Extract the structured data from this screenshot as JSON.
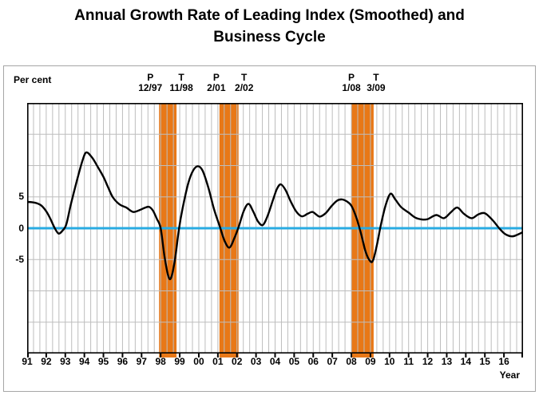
{
  "title_line1": "Annual Growth Rate of Leading Index (Smoothed) and",
  "title_line2": "Business Cycle",
  "percent_label": "Per cent",
  "year_label": "Year",
  "colors": {
    "line": "#000000",
    "zero_line": "#29ABE2",
    "recession_band": "#E87817",
    "gridline": "#BDBDBD",
    "plot_border": "#000000",
    "frame_border": "#A6A6A6"
  },
  "chart_data": {
    "type": "line",
    "title": "Annual Growth Rate of Leading Index (Smoothed) and Business Cycle",
    "ylabel": "Per cent",
    "xlabel": "Year",
    "xlim": [
      1991,
      2017
    ],
    "ylim": [
      -20,
      20
    ],
    "grid": true,
    "y_gridline_step": 5,
    "x_gridlines_per_year": 3,
    "y_labeled_ticks": [
      {
        "label": "5",
        "value": 5
      },
      {
        "label": "0",
        "value": 0
      },
      {
        "label": "-5",
        "value": -5
      }
    ],
    "x_tick_years": [
      "91",
      "92",
      "93",
      "94",
      "95",
      "96",
      "97",
      "98",
      "99",
      "00",
      "01",
      "02",
      "03",
      "04",
      "05",
      "06",
      "07",
      "08",
      "09",
      "10",
      "11",
      "12",
      "13",
      "14",
      "15",
      "16"
    ],
    "zero_line_value": 0,
    "recession_bands": [
      {
        "peak_letter": "P",
        "peak_date": "12/97",
        "trough_letter": "T",
        "trough_date": "11/98",
        "t_start": 1997.917,
        "t_end": 1998.833
      },
      {
        "peak_letter": "P",
        "peak_date": "2/01",
        "trough_letter": "T",
        "trough_date": "2/02",
        "t_start": 2001.083,
        "t_end": 2002.083
      },
      {
        "peak_letter": "P",
        "peak_date": "1/08",
        "trough_letter": "T",
        "trough_date": "3/09",
        "t_start": 2008.0,
        "t_end": 2009.167
      }
    ],
    "series": [
      {
        "name": "Annual growth rate of leading index (smoothed), per cent",
        "points": [
          [
            1991.0,
            4.2
          ],
          [
            1991.25,
            4.15
          ],
          [
            1991.5,
            4.0
          ],
          [
            1991.75,
            3.6
          ],
          [
            1992.0,
            2.7
          ],
          [
            1992.2,
            1.6
          ],
          [
            1992.45,
            0.0
          ],
          [
            1992.65,
            -0.85
          ],
          [
            1992.85,
            -0.4
          ],
          [
            1993.05,
            0.6
          ],
          [
            1993.3,
            3.9
          ],
          [
            1993.6,
            7.5
          ],
          [
            1993.9,
            10.8
          ],
          [
            1994.1,
            12.1
          ],
          [
            1994.4,
            11.3
          ],
          [
            1994.7,
            9.8
          ],
          [
            1995.0,
            8.2
          ],
          [
            1995.25,
            6.5
          ],
          [
            1995.5,
            4.9
          ],
          [
            1995.85,
            3.8
          ],
          [
            1996.2,
            3.3
          ],
          [
            1996.55,
            2.6
          ],
          [
            1996.9,
            2.9
          ],
          [
            1997.2,
            3.3
          ],
          [
            1997.4,
            3.4
          ],
          [
            1997.6,
            2.8
          ],
          [
            1997.8,
            1.5
          ],
          [
            1998.0,
            0.0
          ],
          [
            1998.2,
            -4.5
          ],
          [
            1998.4,
            -7.6
          ],
          [
            1998.55,
            -7.9
          ],
          [
            1998.75,
            -5.0
          ],
          [
            1998.95,
            -0.3
          ],
          [
            1999.15,
            3.2
          ],
          [
            1999.45,
            7.2
          ],
          [
            1999.7,
            9.2
          ],
          [
            1999.95,
            9.9
          ],
          [
            2000.2,
            9.2
          ],
          [
            2000.5,
            6.5
          ],
          [
            2000.8,
            3.0
          ],
          [
            2001.1,
            0.3
          ],
          [
            2001.35,
            -2.0
          ],
          [
            2001.6,
            -3.1
          ],
          [
            2001.85,
            -1.7
          ],
          [
            2002.1,
            0.3
          ],
          [
            2002.35,
            2.7
          ],
          [
            2002.6,
            3.9
          ],
          [
            2002.85,
            2.7
          ],
          [
            2003.1,
            1.1
          ],
          [
            2003.35,
            0.5
          ],
          [
            2003.6,
            1.9
          ],
          [
            2003.9,
            4.6
          ],
          [
            2004.1,
            6.3
          ],
          [
            2004.3,
            7.0
          ],
          [
            2004.55,
            6.1
          ],
          [
            2004.8,
            4.4
          ],
          [
            2005.1,
            2.7
          ],
          [
            2005.4,
            1.9
          ],
          [
            2005.7,
            2.3
          ],
          [
            2005.95,
            2.6
          ],
          [
            2006.15,
            2.2
          ],
          [
            2006.35,
            1.85
          ],
          [
            2006.65,
            2.4
          ],
          [
            2006.95,
            3.5
          ],
          [
            2007.25,
            4.4
          ],
          [
            2007.5,
            4.6
          ],
          [
            2007.75,
            4.3
          ],
          [
            2008.0,
            3.6
          ],
          [
            2008.25,
            1.8
          ],
          [
            2008.5,
            -0.8
          ],
          [
            2008.75,
            -3.8
          ],
          [
            2009.0,
            -5.3
          ],
          [
            2009.15,
            -5.0
          ],
          [
            2009.35,
            -2.5
          ],
          [
            2009.55,
            0.6
          ],
          [
            2009.8,
            3.7
          ],
          [
            2010.05,
            5.5
          ],
          [
            2010.3,
            4.6
          ],
          [
            2010.6,
            3.4
          ],
          [
            2011.0,
            2.5
          ],
          [
            2011.35,
            1.7
          ],
          [
            2011.7,
            1.4
          ],
          [
            2012.0,
            1.45
          ],
          [
            2012.45,
            2.1
          ],
          [
            2012.85,
            1.6
          ],
          [
            2013.2,
            2.5
          ],
          [
            2013.55,
            3.3
          ],
          [
            2013.9,
            2.3
          ],
          [
            2014.3,
            1.6
          ],
          [
            2014.65,
            2.2
          ],
          [
            2015.0,
            2.4
          ],
          [
            2015.4,
            1.3
          ],
          [
            2015.75,
            0.0
          ],
          [
            2016.05,
            -0.9
          ],
          [
            2016.4,
            -1.3
          ],
          [
            2016.7,
            -1.05
          ],
          [
            2017.0,
            -0.6
          ]
        ]
      }
    ]
  }
}
